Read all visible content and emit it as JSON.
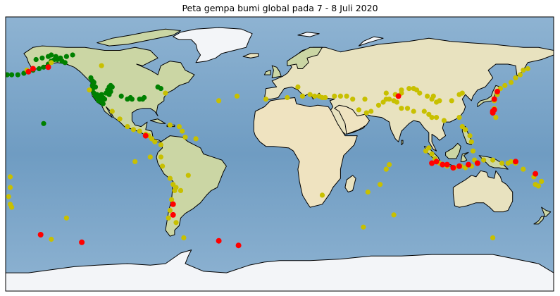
{
  "title": "Peta gempa bumi global pada 7 - 8 Juli 2020",
  "colors": {
    "ocean": "#7da7c9",
    "ocean_deep": "#6f9cc2",
    "land": "#e8e2bf",
    "land_green": "#cbd6a4",
    "desert": "#efe3c0",
    "mountain": "#d6cfb0",
    "ice": "#f3f5f8",
    "coast": "#000000",
    "quake_green": "#008000",
    "quake_yellow": "#c8c000",
    "quake_red": "#ff0000"
  },
  "chart_data": {
    "type": "scatter",
    "projection": "plate-carree",
    "xlim": [
      -180,
      180
    ],
    "ylim": [
      -90,
      90
    ],
    "series": [
      {
        "color": "green",
        "points": [
          [
            -179,
            52
          ],
          [
            -176,
            52
          ],
          [
            -172,
            52
          ],
          [
            -168,
            53
          ],
          [
            -165,
            54
          ],
          [
            -162,
            55
          ],
          [
            -158,
            56
          ],
          [
            -155,
            57
          ],
          [
            -152,
            59
          ],
          [
            -150,
            61
          ],
          [
            -148,
            62
          ],
          [
            -146,
            62
          ],
          [
            -144,
            63
          ],
          [
            -140,
            64
          ],
          [
            -136,
            65
          ],
          [
            -160,
            62
          ],
          [
            -156,
            63
          ],
          [
            -152,
            64
          ],
          [
            -150,
            65
          ],
          [
            -147,
            64
          ],
          [
            -143,
            61
          ],
          [
            -141,
            60
          ],
          [
            -124,
            50
          ],
          [
            -123,
            48
          ],
          [
            -122,
            47
          ],
          [
            -123,
            45
          ],
          [
            -121,
            44
          ],
          [
            -123,
            42
          ],
          [
            -122,
            40
          ],
          [
            -121,
            38
          ],
          [
            -120,
            37
          ],
          [
            -118,
            36
          ],
          [
            -117,
            34
          ],
          [
            -116,
            33
          ],
          [
            -119,
            35
          ],
          [
            -120,
            39
          ],
          [
            -118,
            38
          ],
          [
            -116,
            37
          ],
          [
            -115,
            36
          ],
          [
            -117,
            39
          ],
          [
            -114,
            40
          ],
          [
            -113,
            42
          ],
          [
            -112,
            44
          ],
          [
            -111,
            45
          ],
          [
            -110,
            44
          ],
          [
            -112,
            39
          ],
          [
            -111,
            41
          ],
          [
            -104,
            38
          ],
          [
            -100,
            36
          ],
          [
            -98,
            37
          ],
          [
            -97,
            36
          ],
          [
            -90,
            36
          ],
          [
            -89,
            37
          ],
          [
            -80,
            44
          ],
          [
            -78,
            43
          ],
          [
            -92,
            36
          ],
          [
            -155,
            20
          ]
        ]
      },
      {
        "color": "yellow",
        "points": [
          [
            -177,
            -15
          ],
          [
            -177,
            -22
          ],
          [
            -178,
            -28
          ],
          [
            -177,
            -33
          ],
          [
            -176,
            -35
          ],
          [
            -150,
            60
          ],
          [
            -166,
            55
          ],
          [
            -117,
            58
          ],
          [
            -125,
            42
          ],
          [
            -110,
            28
          ],
          [
            -105,
            23
          ],
          [
            -100,
            18
          ],
          [
            -96,
            16
          ],
          [
            -92,
            15
          ],
          [
            -88,
            13
          ],
          [
            -86,
            12
          ],
          [
            -84,
            10
          ],
          [
            -82,
            8
          ],
          [
            -78,
            6
          ],
          [
            -72,
            19
          ],
          [
            -66,
            18
          ],
          [
            -64,
            15
          ],
          [
            -62,
            11
          ],
          [
            -75,
            40
          ],
          [
            -78,
            -2
          ],
          [
            -77,
            -8
          ],
          [
            -72,
            -16
          ],
          [
            -70,
            -20
          ],
          [
            -69,
            -24
          ],
          [
            -71,
            -30
          ],
          [
            -72,
            -37
          ],
          [
            -73,
            -42
          ],
          [
            -68,
            -22
          ],
          [
            -65,
            -24
          ],
          [
            -68,
            -45
          ],
          [
            -60,
            -14
          ],
          [
            -40,
            35
          ],
          [
            -28,
            38
          ],
          [
            -63,
            -55
          ],
          [
            -85,
            -2
          ],
          [
            -95,
            -5
          ],
          [
            -55,
            10
          ],
          [
            -9,
            36
          ],
          [
            5,
            37
          ],
          [
            12,
            44
          ],
          [
            15,
            38
          ],
          [
            20,
            39
          ],
          [
            23,
            38
          ],
          [
            26,
            38
          ],
          [
            28,
            37
          ],
          [
            30,
            37
          ],
          [
            36,
            38
          ],
          [
            40,
            38
          ],
          [
            44,
            38
          ],
          [
            48,
            36
          ],
          [
            56,
            36
          ],
          [
            52,
            29
          ],
          [
            57,
            27
          ],
          [
            60,
            28
          ],
          [
            65,
            32
          ],
          [
            68,
            34
          ],
          [
            70,
            36
          ],
          [
            72,
            36
          ],
          [
            75,
            35
          ],
          [
            77,
            34
          ],
          [
            80,
            30
          ],
          [
            88,
            28
          ],
          [
            84,
            30
          ],
          [
            95,
            28
          ],
          [
            98,
            26
          ],
          [
            100,
            24
          ],
          [
            103,
            24
          ],
          [
            108,
            22
          ],
          [
            118,
            24
          ],
          [
            120,
            18
          ],
          [
            122,
            16
          ],
          [
            125,
            12
          ],
          [
            126,
            8
          ],
          [
            127,
            2
          ],
          [
            98,
            4
          ],
          [
            96,
            2
          ],
          [
            100,
            0
          ],
          [
            102,
            -3
          ],
          [
            105,
            -6
          ],
          [
            110,
            -8
          ],
          [
            115,
            -9
          ],
          [
            119,
            -8
          ],
          [
            122,
            -9
          ],
          [
            126,
            -8
          ],
          [
            128,
            -4
          ],
          [
            130,
            -6
          ],
          [
            134,
            -4
          ],
          [
            140,
            -4
          ],
          [
            146,
            -6
          ],
          [
            150,
            -6
          ],
          [
            152,
            -5
          ],
          [
            155,
            -6
          ],
          [
            160,
            -10
          ],
          [
            167,
            -15
          ],
          [
            168,
            -20
          ],
          [
            170,
            -21
          ],
          [
            172,
            -18
          ],
          [
            142,
            24
          ],
          [
            140,
            28
          ],
          [
            141,
            30
          ],
          [
            141,
            35
          ],
          [
            143,
            39
          ],
          [
            145,
            43
          ],
          [
            148,
            45
          ],
          [
            152,
            47
          ],
          [
            155,
            50
          ],
          [
            158,
            52
          ],
          [
            160,
            55
          ],
          [
            163,
            56
          ],
          [
            120,
            40
          ],
          [
            118,
            39
          ],
          [
            113,
            35
          ],
          [
            105,
            35
          ],
          [
            103,
            34
          ],
          [
            100,
            36
          ],
          [
            101,
            38
          ],
          [
            97,
            38
          ],
          [
            92,
            40
          ],
          [
            90,
            42
          ],
          [
            88,
            43
          ],
          [
            85,
            43
          ],
          [
            80,
            42
          ],
          [
            76,
            39
          ],
          [
            80,
            40
          ],
          [
            70,
            40
          ],
          [
            58,
            -25
          ],
          [
            66,
            -20
          ],
          [
            70,
            -10
          ],
          [
            72,
            -7
          ],
          [
            55,
            -48
          ],
          [
            75,
            -40
          ],
          [
            28,
            -27
          ],
          [
            140,
            -55
          ],
          [
            -150,
            -56
          ],
          [
            -140,
            -42
          ]
        ]
      },
      {
        "color": "red",
        "points": [
          [
            -165,
            54
          ],
          [
            -152,
            57
          ],
          [
            -162,
            56
          ],
          [
            -88,
            12
          ],
          [
            -70,
            -33
          ],
          [
            -70,
            -40
          ],
          [
            -157,
            -53
          ],
          [
            -130,
            -58
          ],
          [
            -40,
            -57
          ],
          [
            -27,
            -60
          ],
          [
            78,
            38
          ],
          [
            143,
            41
          ],
          [
            141,
            36
          ],
          [
            140,
            27
          ],
          [
            141,
            29
          ],
          [
            140,
            28
          ],
          [
            100,
            -6
          ],
          [
            103,
            -5
          ],
          [
            107,
            -7
          ],
          [
            110,
            -7
          ],
          [
            114,
            -9
          ],
          [
            118,
            -8
          ],
          [
            124,
            -7
          ],
          [
            130,
            -6
          ],
          [
            155,
            -5
          ],
          [
            168,
            -13
          ]
        ]
      }
    ]
  }
}
